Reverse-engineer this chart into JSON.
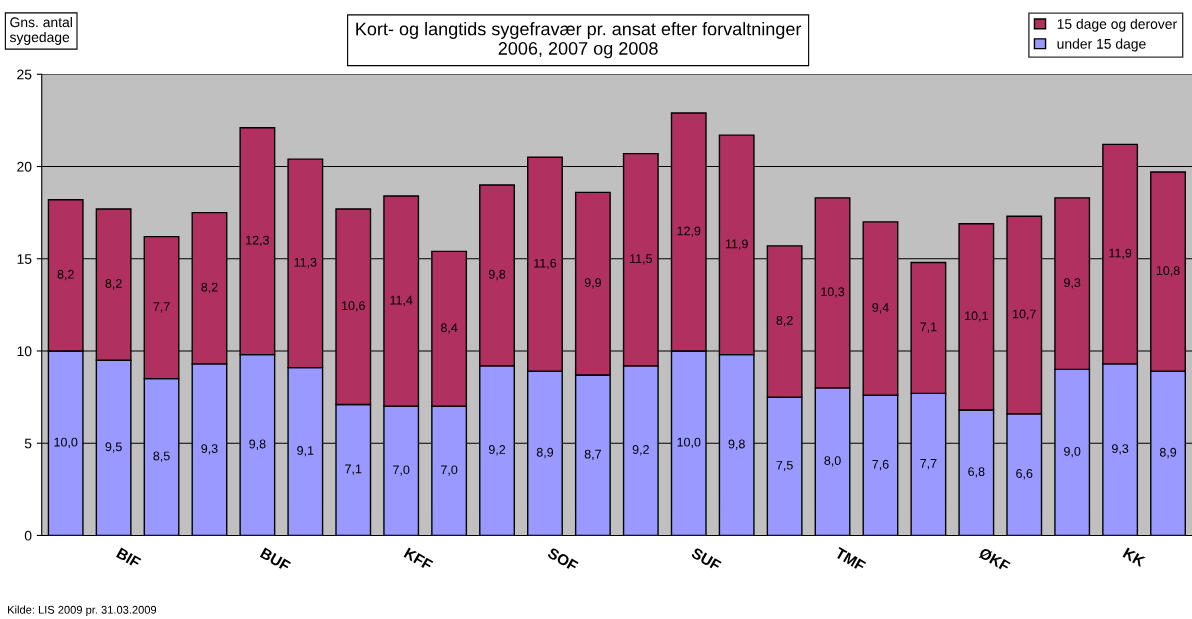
{
  "chart_data": {
    "type": "bar",
    "stacked": true,
    "title": "Kort- og langtids sygefravær pr. ansat efter forvaltninger\n2006, 2007 og 2008",
    "ylabel": "Gns. antal\nsygedage",
    "annotations": [
      "Kilde: LIS 2009 pr. 31.03.2009"
    ],
    "categories": [
      null,
      "BIF",
      null,
      null,
      "BUF",
      null,
      null,
      "KFF",
      null,
      null,
      "SOF",
      null,
      null,
      "SUF",
      null,
      null,
      "TMF",
      null,
      null,
      "ØKF",
      null,
      null,
      "KK",
      null
    ],
    "series": [
      {
        "name": "under 15 dage",
        "color": "#9999ff",
        "values": [
          10.0,
          9.5,
          8.5,
          9.3,
          9.8,
          9.1,
          7.1,
          7.0,
          7.0,
          9.2,
          8.9,
          8.7,
          9.2,
          10.0,
          9.8,
          7.5,
          8.0,
          7.6,
          7.7,
          6.8,
          6.6,
          9.0,
          9.3,
          8.9
        ],
        "value_labels": [
          "10,0",
          "9,5",
          "8,5",
          "9,3",
          "9,8",
          "9,1",
          "7,1",
          "7,0",
          "7,0",
          "9,2",
          "8,9",
          "8,7",
          "9,2",
          "10,0",
          "9,8",
          "7,5",
          "8,0",
          "7,6",
          "7,7",
          "6,8",
          "6,6",
          "9,0",
          "9,3",
          "8,9"
        ]
      },
      {
        "name": "15 dage og derover",
        "color": "#b03060",
        "values": [
          8.2,
          8.2,
          7.7,
          8.2,
          12.3,
          11.3,
          10.6,
          11.4,
          8.4,
          9.8,
          11.6,
          9.9,
          11.5,
          12.9,
          11.9,
          8.2,
          10.3,
          9.4,
          7.1,
          10.1,
          10.7,
          9.3,
          11.9,
          10.8
        ],
        "value_labels": [
          "8,2",
          "8,2",
          "7,7",
          "8,2",
          "12,3",
          "11,3",
          "10,6",
          "11,4",
          "8,4",
          "9,8",
          "11,6",
          "9,9",
          "11,5",
          "12,9",
          "11,9",
          "8,2",
          "10,3",
          "9,4",
          "7,1",
          "10,1",
          "10,7",
          "9,3",
          "11,9",
          "10,8"
        ]
      }
    ],
    "ylim": [
      0,
      25
    ],
    "yticks": [
      0,
      5,
      10,
      15,
      20,
      25
    ],
    "grid": "y",
    "legend": "top right"
  }
}
